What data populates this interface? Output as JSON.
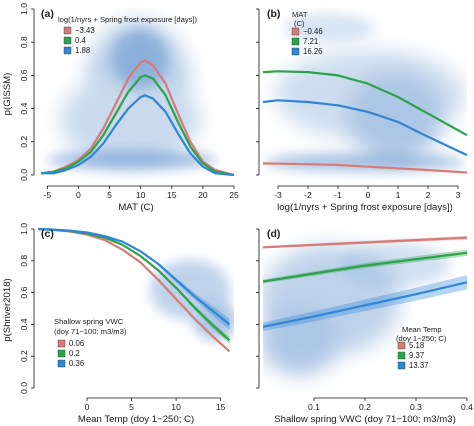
{
  "figure": {
    "shared_ylabels": [
      "p(GISSM)",
      "p(Shriver2018)"
    ]
  },
  "chart_data": [
    {
      "id": "a",
      "type": "line",
      "panel_tag": "(a)",
      "xlabel": "MAT (C)",
      "ylabel": "p(GISSM)",
      "xlim": [
        -6.5,
        25
      ],
      "ylim": [
        0,
        1
      ],
      "xticks": [
        -5,
        0,
        5,
        10,
        15,
        20,
        25
      ],
      "yticks": [
        0.0,
        0.2,
        0.4,
        0.6,
        0.8,
        1.0
      ],
      "ytick_labels": [
        "0.0",
        "0.2",
        "0.4",
        "0.6",
        "0.8",
        "1.0"
      ],
      "grid": false,
      "legend": {
        "placement": "top-left",
        "title": "log(1/nyrs + Spring frost exposure [days])",
        "entries": [
          "−3.43",
          "0.4",
          "1.88"
        ]
      },
      "series": [
        {
          "name": "−3.43",
          "color": "#d67b76",
          "x": [
            -6,
            -4,
            -2,
            0,
            2,
            4,
            6,
            8,
            10,
            10.7,
            12,
            14,
            16,
            18,
            20,
            22,
            25
          ],
          "y": [
            0.01,
            0.02,
            0.05,
            0.09,
            0.16,
            0.28,
            0.43,
            0.58,
            0.68,
            0.69,
            0.66,
            0.55,
            0.37,
            0.2,
            0.08,
            0.03,
            0.0
          ]
        },
        {
          "name": "0.4",
          "color": "#2ca34a",
          "x": [
            -6,
            -4,
            -2,
            0,
            2,
            4,
            6,
            8,
            10,
            10.7,
            12,
            14,
            16,
            18,
            20,
            22,
            25
          ],
          "y": [
            0.01,
            0.02,
            0.04,
            0.08,
            0.14,
            0.24,
            0.37,
            0.5,
            0.59,
            0.6,
            0.58,
            0.48,
            0.32,
            0.17,
            0.07,
            0.02,
            0.0
          ]
        },
        {
          "name": "1.88",
          "color": "#2f86d8",
          "x": [
            -6,
            -4,
            -2,
            0,
            2,
            4,
            6,
            8,
            10,
            10.7,
            12,
            14,
            16,
            18,
            20,
            22,
            25
          ],
          "y": [
            0.01,
            0.01,
            0.03,
            0.06,
            0.11,
            0.19,
            0.3,
            0.4,
            0.47,
            0.48,
            0.46,
            0.38,
            0.25,
            0.13,
            0.05,
            0.01,
            0.0
          ]
        }
      ]
    },
    {
      "id": "b",
      "type": "line",
      "panel_tag": "(b)",
      "xlabel": "log(1/nyrs + Spring frost exposure [days])",
      "ylabel": "",
      "xlim": [
        -3.5,
        3.3
      ],
      "ylim": [
        0,
        1
      ],
      "xticks": [
        -3,
        -2,
        -1,
        0,
        1,
        2,
        3
      ],
      "yticks": [
        0.0,
        0.2,
        0.4,
        0.6,
        0.8,
        1.0
      ],
      "grid": false,
      "legend": {
        "placement": "top-left",
        "title": "MAT (C)",
        "entries": [
          "−0.46",
          "7.21",
          "16.26"
        ]
      },
      "series": [
        {
          "name": "−0.46",
          "color": "#d67b76",
          "x": [
            -3.5,
            -2,
            -1,
            0,
            1,
            2,
            3.3
          ],
          "y": [
            0.07,
            0.065,
            0.06,
            0.05,
            0.04,
            0.03,
            0.015
          ]
        },
        {
          "name": "7.21",
          "color": "#2ca34a",
          "x": [
            -3.5,
            -3,
            -2,
            -1,
            0,
            1,
            2,
            3.3
          ],
          "y": [
            0.62,
            0.625,
            0.62,
            0.6,
            0.55,
            0.47,
            0.37,
            0.24
          ]
        },
        {
          "name": "16.26",
          "color": "#2f86d8",
          "x": [
            -3.5,
            -3,
            -2,
            -1,
            0,
            1,
            2,
            3.3
          ],
          "y": [
            0.44,
            0.45,
            0.44,
            0.42,
            0.38,
            0.32,
            0.23,
            0.12
          ]
        }
      ]
    },
    {
      "id": "c",
      "type": "line",
      "panel_tag": "(c)",
      "xlabel": "Mean Temp (doy 1−250; C)",
      "ylabel": "p(Shriver2018)",
      "xlim": [
        -5.5,
        16.5
      ],
      "ylim": [
        0,
        1
      ],
      "xticks": [
        0,
        5,
        10,
        15
      ],
      "yticks": [
        0.0,
        0.2,
        0.4,
        0.6,
        0.8,
        1.0
      ],
      "ytick_labels": [
        "0.0",
        "0.2",
        "0.4",
        "0.6",
        "0.8",
        "1.0"
      ],
      "grid": false,
      "legend": {
        "placement": "bottom-left",
        "title": "Shallow spring VWC (doy 71−100; m3/m3)",
        "entries": [
          "0.06",
          "0.2",
          "0.36"
        ]
      },
      "series": [
        {
          "name": "0.06",
          "color": "#d67b76",
          "x": [
            -5.5,
            -4,
            -2,
            0,
            2,
            4,
            6,
            8,
            10,
            12,
            14,
            16
          ],
          "y": [
            1.0,
            0.995,
            0.985,
            0.965,
            0.93,
            0.87,
            0.79,
            0.68,
            0.56,
            0.44,
            0.33,
            0.23
          ]
        },
        {
          "name": "0.2",
          "color": "#2ca34a",
          "x": [
            -5.5,
            -4,
            -2,
            0,
            2,
            4,
            6,
            8,
            10,
            12,
            14,
            16
          ],
          "y": [
            1.0,
            0.996,
            0.988,
            0.972,
            0.945,
            0.9,
            0.83,
            0.74,
            0.63,
            0.51,
            0.4,
            0.3
          ]
        },
        {
          "name": "0.36",
          "color": "#2f86d8",
          "x": [
            -5.5,
            -4,
            -2,
            0,
            2,
            4,
            6,
            8,
            10,
            12,
            14,
            16
          ],
          "y": [
            1.0,
            0.997,
            0.99,
            0.978,
            0.955,
            0.92,
            0.86,
            0.78,
            0.68,
            0.58,
            0.49,
            0.4
          ]
        }
      ]
    },
    {
      "id": "d",
      "type": "line",
      "panel_tag": "(d)",
      "xlabel": "Shallow spring VWC (doy 71−100; m3/m3)",
      "ylabel": "",
      "xlim": [
        0.0,
        0.4
      ],
      "ylim": [
        0,
        1
      ],
      "xticks": [
        0.1,
        0.2,
        0.3,
        0.4
      ],
      "yticks": [
        0.0,
        0.2,
        0.4,
        0.6,
        0.8,
        1.0
      ],
      "grid": false,
      "legend": {
        "placement": "bottom-right",
        "title": "Mean Temp (doy 1−250; C)",
        "entries": [
          "5.18",
          "9.37",
          "13.37"
        ]
      },
      "series": [
        {
          "name": "5.18",
          "color": "#d67b76",
          "x": [
            0.0,
            0.1,
            0.2,
            0.3,
            0.4
          ],
          "y": [
            0.885,
            0.9,
            0.915,
            0.93,
            0.945
          ]
        },
        {
          "name": "9.37",
          "color": "#2ca34a",
          "x": [
            0.0,
            0.1,
            0.2,
            0.3,
            0.4
          ],
          "y": [
            0.67,
            0.72,
            0.77,
            0.81,
            0.85
          ]
        },
        {
          "name": "13.37",
          "color": "#2f86d8",
          "x": [
            0.0,
            0.1,
            0.2,
            0.3,
            0.4
          ],
          "y": [
            0.385,
            0.45,
            0.52,
            0.59,
            0.665
          ]
        }
      ]
    }
  ]
}
